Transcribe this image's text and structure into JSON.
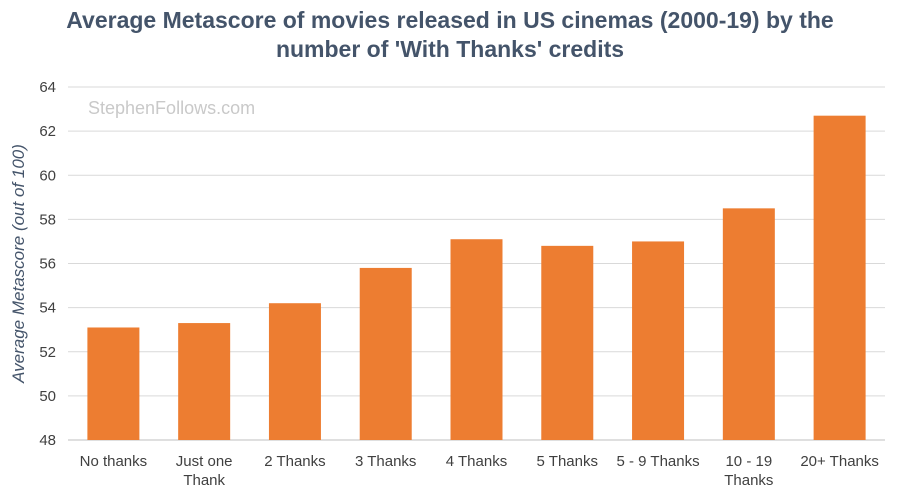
{
  "chart_data": {
    "type": "bar",
    "title": "Average Metascore of movies released in US cinemas (2000-19) by the number of 'With Thanks' credits",
    "xlabel": "",
    "ylabel": "Average Metascore (out of 100)",
    "ylim": [
      48,
      64
    ],
    "yticks": [
      48,
      50,
      52,
      54,
      56,
      58,
      60,
      62,
      64
    ],
    "grid": true,
    "categories": [
      "No thanks",
      "Just one Thank",
      "2 Thanks",
      "3 Thanks",
      "4 Thanks",
      "5 Thanks",
      "5 - 9 Thanks",
      "10 - 19 Thanks",
      "20+ Thanks"
    ],
    "category_lines": [
      [
        "No thanks"
      ],
      [
        "Just one",
        "Thank"
      ],
      [
        "2 Thanks"
      ],
      [
        "3 Thanks"
      ],
      [
        "4 Thanks"
      ],
      [
        "5 Thanks"
      ],
      [
        "5 - 9 Thanks"
      ],
      [
        "10 - 19",
        "Thanks"
      ],
      [
        "20+ Thanks"
      ]
    ],
    "values": [
      53.1,
      53.3,
      54.2,
      55.8,
      57.1,
      56.8,
      57.0,
      58.5,
      62.7
    ],
    "watermark": "StephenFollows.com",
    "colors": {
      "bar": "#ed7d31",
      "grid": "#d9d9d9",
      "axis": "#bfbfbf",
      "tick_text": "#404040",
      "title": "#44546a",
      "ylabel": "#44546a"
    }
  }
}
